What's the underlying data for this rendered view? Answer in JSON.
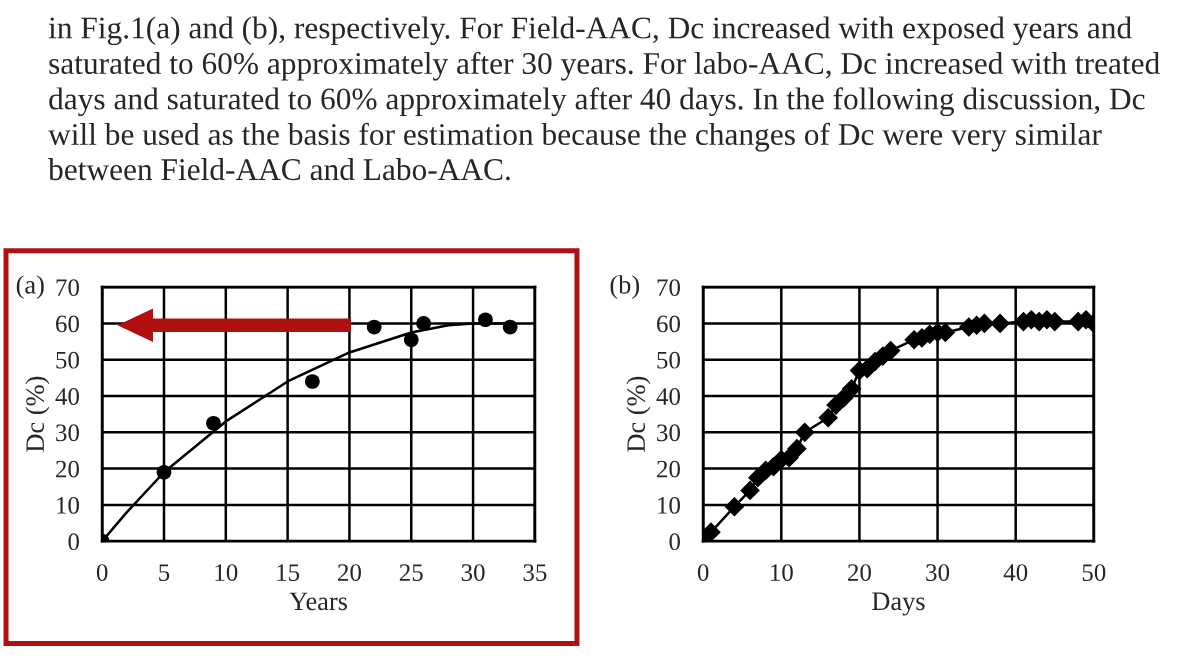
{
  "chart_data": [
    {
      "type": "scatter",
      "xlabel": "Years",
      "ylabel": "Dc (%)",
      "annotations": [
        "in Fig.1(a) and (b), respectively. For Field-AAC, Dc increased with exposed years and saturated to 60% approximately after 30 years. For labo-AAC, Dc increased with treated days and saturated to 60% approximately after 40 days. In the following discussion, Dc will be used as the basis for estimation because the changes of Dc were very similar between Field-AAC and Labo-AAC.",
        "(a)"
      ],
      "xlim": [
        0,
        35
      ],
      "xticks": [
        0,
        5,
        10,
        15,
        20,
        25,
        30,
        35
      ],
      "ylim": [
        0,
        70
      ],
      "yticks": [
        0,
        10,
        20,
        30,
        40,
        50,
        60,
        70
      ],
      "grid": true,
      "legend": false,
      "series": [
        {
          "color": "#000000",
          "marker": "circle",
          "x": [
            0,
            5,
            9,
            17,
            22,
            25,
            26,
            31,
            33
          ],
          "values": [
            0,
            19,
            32.5,
            44,
            59,
            55.5,
            60,
            61,
            59
          ]
        },
        {
          "type": "line",
          "color": "#000000",
          "marker": "none",
          "x": [
            0,
            2,
            5,
            10,
            15,
            20,
            25,
            28,
            30,
            33
          ],
          "values": [
            0,
            8,
            19,
            33,
            44,
            52,
            57.5,
            59.5,
            60,
            60
          ]
        }
      ]
    },
    {
      "type": "line",
      "xlabel": "Days",
      "ylabel": "Dc (%)",
      "annotations": [
        "(b)"
      ],
      "xlim": [
        0,
        50
      ],
      "xticks": [
        0,
        10,
        20,
        30,
        40,
        50
      ],
      "ylim": [
        0,
        70
      ],
      "yticks": [
        0,
        10,
        20,
        30,
        40,
        50,
        60,
        70
      ],
      "grid": true,
      "legend": false,
      "series": [
        {
          "color": "#000000",
          "marker": "diamond",
          "x": [
            0,
            1,
            4,
            6,
            7,
            8,
            9,
            10,
            11,
            12,
            13,
            16,
            17,
            18,
            19,
            20,
            21,
            22,
            23,
            24,
            27,
            28,
            29,
            30,
            31,
            34,
            35,
            36,
            38,
            41,
            42,
            43,
            44,
            45,
            48,
            49,
            50
          ],
          "values": [
            0,
            2.5,
            9.5,
            14,
            17.5,
            19.5,
            20.5,
            22.5,
            23,
            25.5,
            30,
            34,
            37.5,
            39.5,
            42,
            47,
            47.5,
            49.5,
            51,
            52.5,
            55.5,
            56,
            57,
            57.5,
            57.5,
            59,
            59.5,
            60,
            60,
            60.5,
            61,
            60.5,
            61,
            60.5,
            60.5,
            61,
            60
          ]
        }
      ]
    }
  ]
}
